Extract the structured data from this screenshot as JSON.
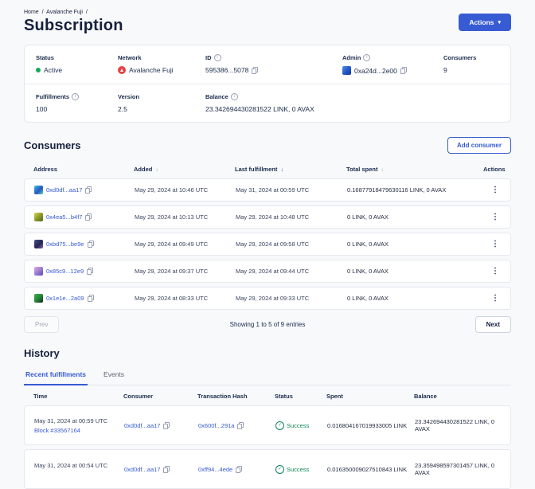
{
  "colors": {
    "accent": "#375bd2",
    "success_green": "#0e8457",
    "status_green": "#18a85b",
    "avalanche_red": "#e84142",
    "background": "#f8f9fb"
  },
  "icons": {
    "chevron_down": "▾",
    "sort": "↕",
    "sort_down": "↓",
    "kebab": "⋮",
    "check": "✓",
    "info": "i",
    "breadcrumb_sep": "/"
  },
  "breadcrumb": {
    "home": "Home",
    "network": "Avalanche Fuji"
  },
  "page": {
    "title": "Subscription",
    "actions_label": "Actions"
  },
  "overview": {
    "status": {
      "label": "Status",
      "value": "Active"
    },
    "network": {
      "label": "Network",
      "value": "Avalanche Fuji"
    },
    "id": {
      "label": "ID",
      "value": "595386...5078"
    },
    "admin": {
      "label": "Admin",
      "value": "0xa24d...2e00"
    },
    "consumers": {
      "label": "Consumers",
      "value": "9"
    },
    "fulfillments": {
      "label": "Fulfillments",
      "value": "100"
    },
    "version": {
      "label": "Version",
      "value": "2.5"
    },
    "balance": {
      "label": "Balance",
      "value": "23.342694430281522 LINK, 0 AVAX"
    }
  },
  "consumers": {
    "title": "Consumers",
    "add_button": "Add consumer",
    "columns": {
      "address": "Address",
      "added": "Added",
      "last_fulfillment": "Last fulfillment",
      "total_spent": "Total spent",
      "actions": "Actions"
    },
    "rows": [
      {
        "address": "0xd0df...aa17",
        "added": "May 29, 2024 at 10:46 UTC",
        "last_fulfillment": "May 31, 2024 at 00:59 UTC",
        "total_spent": "0.16877918479630116 LINK, 0 AVAX"
      },
      {
        "address": "0x4ea5...b4f7",
        "added": "May 29, 2024 at 10:13 UTC",
        "last_fulfillment": "May 29, 2024 at 10:48 UTC",
        "total_spent": "0 LINK, 0 AVAX"
      },
      {
        "address": "0xbd75...be9e",
        "added": "May 29, 2024 at 09:49 UTC",
        "last_fulfillment": "May 29, 2024 at 09:58 UTC",
        "total_spent": "0 LINK, 0 AVAX"
      },
      {
        "address": "0x85c9...12e9",
        "added": "May 29, 2024 at 09:37 UTC",
        "last_fulfillment": "May 29, 2024 at 09:44 UTC",
        "total_spent": "0 LINK, 0 AVAX"
      },
      {
        "address": "0x1e1e...2a09",
        "added": "May 29, 2024 at 08:33 UTC",
        "last_fulfillment": "May 29, 2024 at 09:33 UTC",
        "total_spent": "0 LINK, 0 AVAX"
      }
    ],
    "pagination": {
      "prev": "Prev",
      "summary": "Showing 1 to 5 of 9 entries",
      "next": "Next"
    }
  },
  "history": {
    "title": "History",
    "tabs": [
      {
        "label": "Recent fulfillments",
        "active": true
      },
      {
        "label": "Events",
        "active": false
      }
    ],
    "columns": {
      "time": "Time",
      "consumer": "Consumer",
      "tx": "Transaction Hash",
      "status": "Status",
      "spent": "Spent",
      "balance": "Balance"
    },
    "rows": [
      {
        "time": "May 31, 2024 at 00:59 UTC",
        "block": "Block #33567164",
        "consumer": "0xd0df...aa17",
        "tx": "0x600f...291a",
        "status": "Success",
        "spent": "0.016804167019933005 LINK",
        "balance": "23.342694430281522 LINK, 0 AVAX"
      },
      {
        "time": "May 31, 2024 at 00:54 UTC",
        "block": "",
        "consumer": "0xd0df...aa17",
        "tx": "0xff94...4ede",
        "status": "Success",
        "spent": "0.016350009027510843 LINK",
        "balance": "23.359498597301457 LINK, 0 AVAX"
      }
    ]
  }
}
